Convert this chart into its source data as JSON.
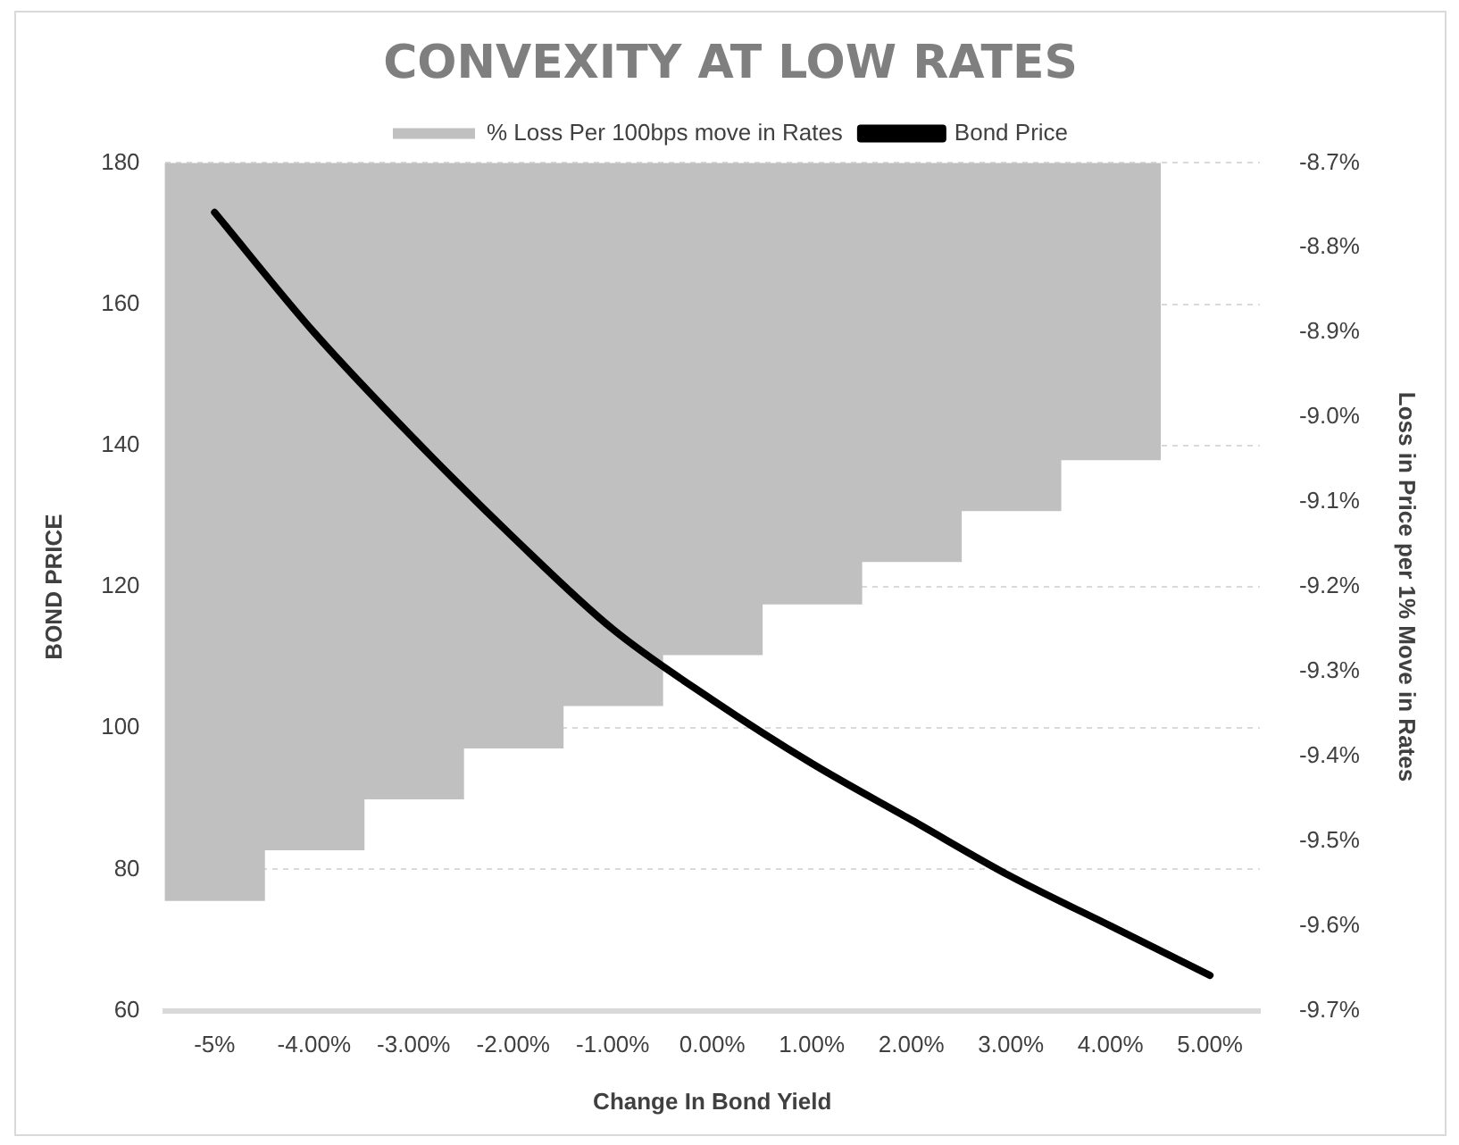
{
  "chart_data": {
    "type": "bar",
    "title": "CONVEXITY AT LOW RATES",
    "xlabel": "Change In Bond Yield",
    "ylabel": "BOND PRICE",
    "y2label": "Loss in Price per 1% Move in Rates",
    "categories": [
      "-5%",
      "-4.00%",
      "-3.00%",
      "-2.00%",
      "-1.00%",
      "0.00%",
      "1.00%",
      "2.00%",
      "3.00%",
      "4.00%",
      "5.00%"
    ],
    "series": [
      {
        "name": "% Loss Per 100bps move in Rates",
        "axis": "y2",
        "color": "#c0c0c0",
        "values": [
          -9.57,
          -9.51,
          -9.45,
          -9.39,
          -9.34,
          -9.28,
          -9.22,
          -9.17,
          -9.11,
          -9.05,
          null
        ]
      },
      {
        "name": "Bond Price",
        "type": "line",
        "color": "#000000",
        "values": [
          173,
          156,
          141,
          127,
          114,
          104,
          95,
          87,
          79,
          72,
          65
        ]
      }
    ],
    "ylim": [
      60,
      180
    ],
    "yticks": [
      60,
      80,
      100,
      120,
      140,
      160,
      180
    ],
    "y2lim": [
      -9.7,
      -8.7
    ],
    "y2ticks": [
      {
        "value": -9.7,
        "label": "-9.7%"
      },
      {
        "value": -9.6,
        "label": "-9.6%"
      },
      {
        "value": -9.5,
        "label": "-9.5%"
      },
      {
        "value": -9.4,
        "label": "-9.4%"
      },
      {
        "value": -9.3,
        "label": "-9.3%"
      },
      {
        "value": -9.2,
        "label": "-9.2%"
      },
      {
        "value": -9.1,
        "label": "-9.1%"
      },
      {
        "value": -9.0,
        "label": "-9.0%"
      },
      {
        "value": -8.9,
        "label": "-8.9%"
      },
      {
        "value": -8.8,
        "label": "-8.8%"
      },
      {
        "value": -8.7,
        "label": "-8.7%"
      }
    ],
    "grid": "y",
    "legend": "top",
    "marker": "none",
    "line_style": "solid"
  }
}
